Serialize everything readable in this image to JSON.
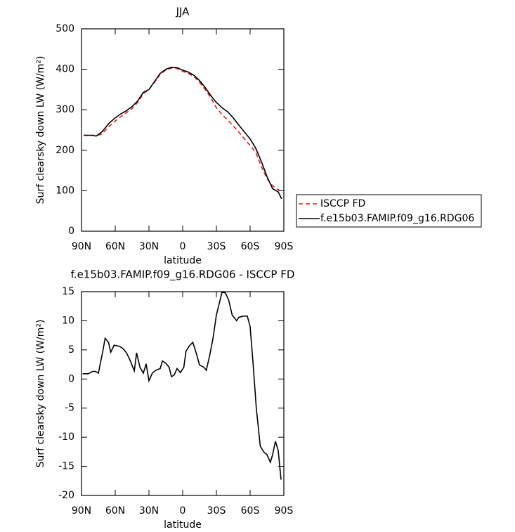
{
  "chart_data": [
    {
      "type": "line",
      "title": "JJA",
      "xlabel": "latitude",
      "ylabel": "Surf clearsky down LW (W/m²)",
      "x": [
        88,
        80,
        77,
        72,
        65,
        60,
        55,
        50,
        45,
        40,
        35,
        30,
        25,
        20,
        15,
        10,
        5,
        0,
        -5,
        -10,
        -15,
        -20,
        -25,
        -30,
        -35,
        -40,
        -45,
        -50,
        -55,
        -60,
        -65,
        -70,
        -75,
        -80,
        -85,
        -88
      ],
      "series": [
        {
          "name": "ISCCP FD",
          "color": "#e41a1c",
          "style": "dashed",
          "values": [
            237,
            237,
            236,
            240,
            260,
            272,
            283,
            293,
            303,
            318,
            340,
            350,
            368,
            388,
            398,
            403,
            402,
            395,
            390,
            382,
            368,
            350,
            330,
            305,
            288,
            275,
            260,
            245,
            228,
            212,
            195,
            160,
            130,
            112,
            103,
            97
          ]
        },
        {
          "name": "f.e15b03.FAMIP.f09_g16.RDG06",
          "color": "#000000",
          "style": "solid",
          "values": [
            237,
            237,
            235,
            245,
            268,
            280,
            290,
            298,
            308,
            322,
            343,
            350,
            370,
            390,
            400,
            405,
            404,
            398,
            393,
            385,
            372,
            355,
            335,
            318,
            305,
            295,
            280,
            262,
            245,
            228,
            205,
            172,
            135,
            105,
            97,
            80
          ]
        }
      ],
      "xlim": [
        90,
        -90
      ],
      "xticks": [
        {
          "value": 90,
          "label": "90N"
        },
        {
          "value": 60,
          "label": "60N"
        },
        {
          "value": 30,
          "label": "30N"
        },
        0,
        {
          "value": -30,
          "label": "30S"
        },
        {
          "value": -60,
          "label": "60S"
        },
        {
          "value": -90,
          "label": "90S"
        }
      ],
      "ylim": [
        0,
        500
      ],
      "yticks": [
        0,
        100,
        200,
        300,
        400,
        500
      ],
      "legend": "outside-right"
    },
    {
      "type": "line",
      "title": "f.e15b03.FAMIP.f09_g16.RDG06 - ISCCP FD",
      "xlabel": "latitude",
      "ylabel": "Surf clearsky down LW (W/m²)",
      "x": [
        89,
        84,
        80,
        77.5,
        75,
        71,
        69,
        66,
        64,
        61,
        56,
        53,
        50,
        47,
        43,
        41,
        38,
        35,
        32.5,
        30,
        27,
        24,
        20,
        18,
        15,
        12,
        10,
        7.5,
        5,
        2,
        -1,
        -3,
        -6,
        -9,
        -12,
        -15,
        -19,
        -21,
        -24,
        -27,
        -30,
        -35,
        -38,
        -41,
        -44,
        -48,
        -50,
        -54,
        -57.5,
        -60,
        -62.5,
        -65.5,
        -69,
        -72,
        -75,
        -78,
        -80,
        -82.5,
        -85,
        -87.5
      ],
      "values": [
        0.9,
        0.9,
        1.3,
        1.3,
        1.0,
        4.8,
        7.0,
        6.3,
        4.6,
        5.8,
        5.6,
        5.2,
        4.5,
        3.3,
        1.4,
        4.5,
        2.0,
        1.0,
        2.6,
        -0.3,
        1.0,
        1.5,
        1.8,
        3.1,
        2.7,
        2.0,
        0.4,
        0.7,
        1.8,
        1.1,
        2.0,
        4.8,
        5.7,
        6.3,
        4.5,
        2.4,
        2.0,
        1.5,
        4.0,
        7.0,
        11,
        14.9,
        14.8,
        13.5,
        11,
        10,
        10.6,
        10.8,
        10.8,
        9,
        3,
        -5,
        -11.5,
        -12.5,
        -13,
        -14.3,
        -13,
        -10.7,
        -12.3,
        -17.3
      ],
      "color": "#000000",
      "xlim": [
        90,
        -90
      ],
      "xticks": [
        {
          "value": 90,
          "label": "90N"
        },
        {
          "value": 60,
          "label": "60N"
        },
        {
          "value": 30,
          "label": "30N"
        },
        0,
        {
          "value": -30,
          "label": "30S"
        },
        {
          "value": -60,
          "label": "60S"
        },
        {
          "value": -90,
          "label": "90S"
        }
      ],
      "ylim": [
        -20,
        15
      ],
      "yticks": [
        -20,
        -15,
        -10,
        -5,
        0,
        5,
        10,
        15
      ]
    }
  ]
}
